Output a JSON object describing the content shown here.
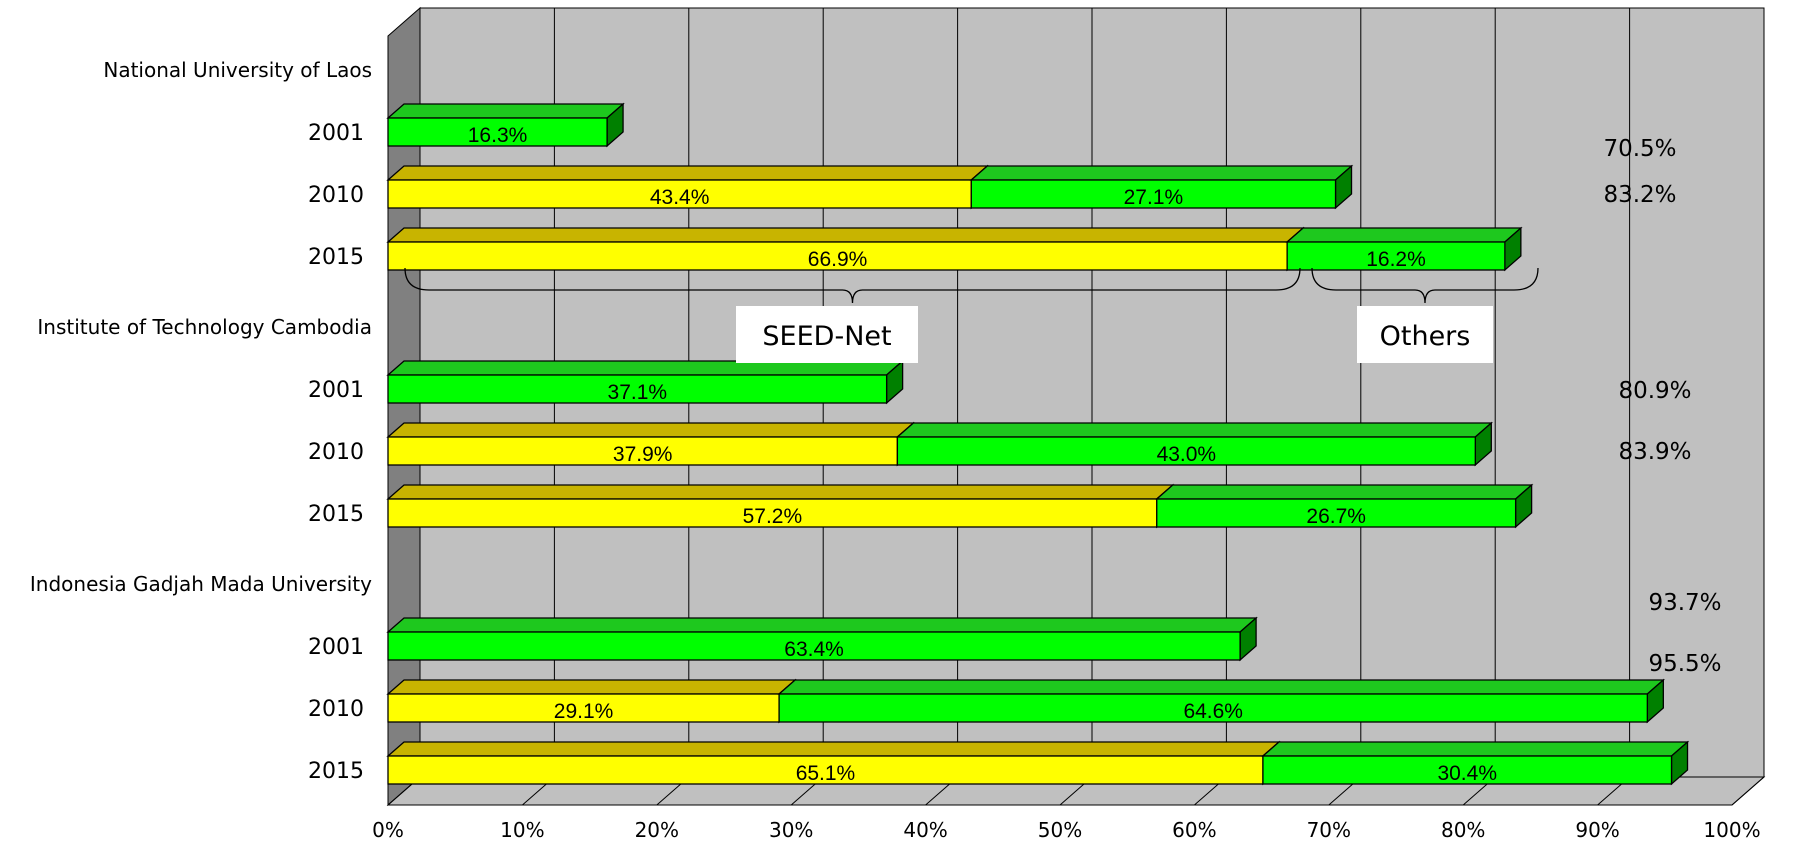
{
  "chart_data": {
    "type": "bar",
    "orientation": "horizontal",
    "stacked": true,
    "xlim": [
      0,
      100
    ],
    "x_ticks": [
      "0%",
      "10%",
      "20%",
      "30%",
      "40%",
      "50%",
      "60%",
      "70%",
      "80%",
      "90%",
      "100%"
    ],
    "colors": {
      "seed": "#ffff00",
      "others": "#00ff00"
    },
    "groups": [
      {
        "name": "National University of Laos",
        "rows": [
          {
            "year": "2001",
            "seed": null,
            "others": 16.3,
            "seed_label": "",
            "others_label": "16.3%",
            "total_label": ""
          },
          {
            "year": "2010",
            "seed": 43.4,
            "others": 27.1,
            "seed_label": "43.4%",
            "others_label": "27.1%",
            "total_label": "70.5%"
          },
          {
            "year": "2015",
            "seed": 66.9,
            "others": 16.2,
            "seed_label": "66.9%",
            "others_label": "16.2%",
            "total_label": "83.2%"
          }
        ]
      },
      {
        "name": "Institute of Technology Cambodia",
        "rows": [
          {
            "year": "2001",
            "seed": null,
            "others": 37.1,
            "seed_label": "",
            "others_label": "37.1%",
            "total_label": ""
          },
          {
            "year": "2010",
            "seed": 37.9,
            "others": 43.0,
            "seed_label": "37.9%",
            "others_label": "43.0%",
            "total_label": "80.9%"
          },
          {
            "year": "2015",
            "seed": 57.2,
            "others": 26.7,
            "seed_label": "57.2%",
            "others_label": "26.7%",
            "total_label": "83.9%"
          }
        ]
      },
      {
        "name": "Indonesia Gadjah Mada University",
        "rows": [
          {
            "year": "2001",
            "seed": null,
            "others": 63.4,
            "seed_label": "",
            "others_label": "63.4%",
            "total_label": ""
          },
          {
            "year": "2010",
            "seed": 29.1,
            "others": 64.6,
            "seed_label": "29.1%",
            "others_label": "64.6%",
            "total_label": "93.7%"
          },
          {
            "year": "2015",
            "seed": 65.1,
            "others": 30.4,
            "seed_label": "65.1%",
            "others_label": "30.4%",
            "total_label": "95.5%"
          }
        ]
      }
    ],
    "callouts": [
      {
        "text": "SEED-Net"
      },
      {
        "text": "Others"
      }
    ]
  }
}
